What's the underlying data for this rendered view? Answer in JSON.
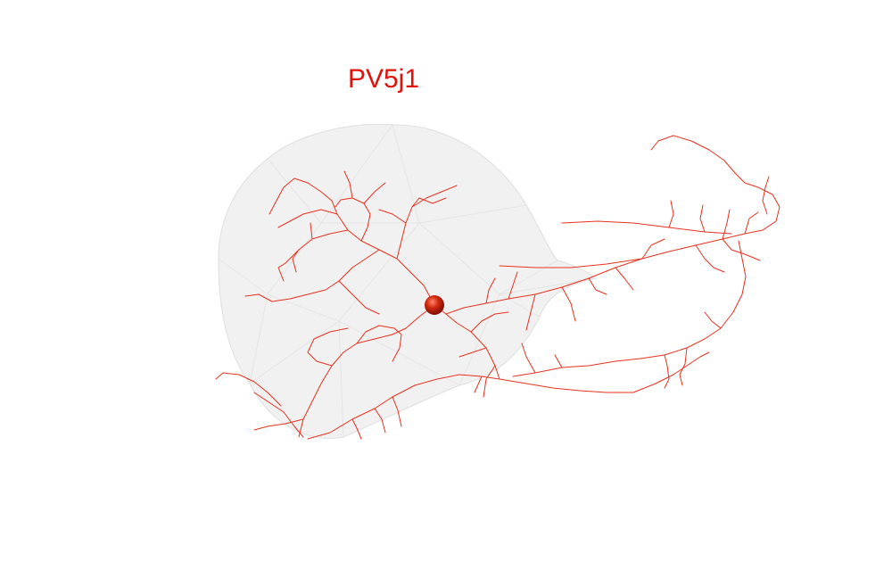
{
  "figure": {
    "title": "PV5j1",
    "colors": {
      "background": "#ffffff",
      "neuron": "#e8321e",
      "soma": "#c41a08",
      "title": "#e0120a",
      "mesh_fill": "#eeeeee",
      "mesh_edge": "#dddddd"
    },
    "elements": [
      "brain-region-mesh",
      "neuron-arbor",
      "soma-sphere"
    ]
  }
}
